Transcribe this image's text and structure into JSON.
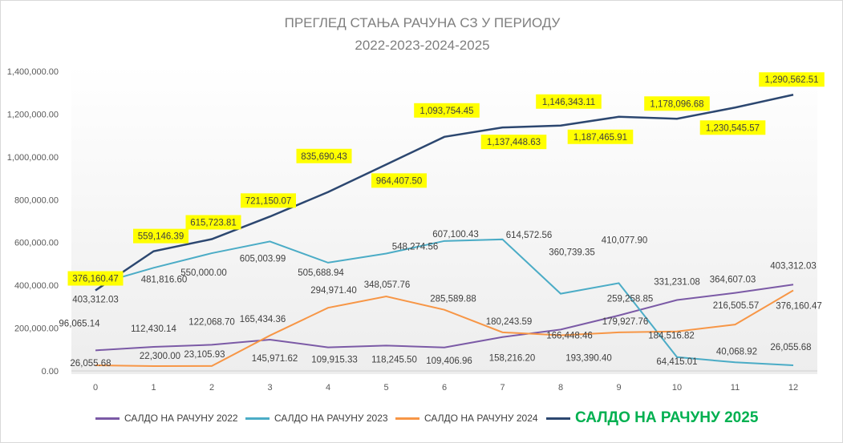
{
  "chart_data": {
    "type": "line",
    "title": [
      "ПРЕГЛЕД СТАЊА РАЧУНА СЗ У ПЕРИОДУ",
      "2022-2023-2024-2025"
    ],
    "x": [
      0,
      1,
      2,
      3,
      4,
      5,
      6,
      7,
      8,
      9,
      10,
      11,
      12
    ],
    "ylim": [
      0,
      1400000
    ],
    "yticks": [
      "0.00",
      "200,000.00",
      "400,000.00",
      "600,000.00",
      "800,000.00",
      "1,000,000.00",
      "1,200,000.00",
      "1,400,000.00"
    ],
    "grid": false,
    "legend_position": "bottom",
    "series": [
      {
        "name": "САЛДО НА РАЧУНУ 2022",
        "color": "#7b5aa6",
        "values": [
          96065.14,
          112430.14,
          122068.7,
          145971.62,
          109915.33,
          118245.5,
          109406.96,
          158216.2,
          193390.4,
          259258.85,
          331231.08,
          364607.03,
          403312.03
        ],
        "labels": [
          "96,065.14",
          "112,430.14",
          "122,068.70",
          "145,971.62",
          "109,915.33",
          "118,245.50",
          "109,406.96",
          "158,216.20",
          "193,390.40",
          "259,258.85",
          "331,231.08",
          "364,607.03",
          "403,312.03"
        ]
      },
      {
        "name": "САЛДО НА РАЧУНУ 2023",
        "color": "#4bacc6",
        "values": [
          403312.03,
          481816.6,
          550000.0,
          605003.99,
          505688.94,
          548274.56,
          607100.43,
          614572.56,
          360739.35,
          410077.9,
          64415.01,
          40068.92,
          26055.68
        ],
        "labels": [
          "403,312.03",
          "481,816.60",
          "550,000.00",
          "605,003.99",
          "505,688.94",
          "548,274.56",
          "607,100.43",
          "614,572.56",
          "360,739.35",
          "410,077.90",
          "64,415.01",
          "40,068.92",
          "26,055.68"
        ]
      },
      {
        "name": "САЛДО НА РАЧУНУ 2024",
        "color": "#f79646",
        "values": [
          26055.68,
          22300.0,
          23105.93,
          165434.36,
          294971.4,
          348057.76,
          285589.88,
          180243.59,
          166448.46,
          179927.76,
          184516.82,
          216505.57,
          376160.47
        ],
        "labels": [
          "26,055.68",
          "22,300.00",
          "23,105.93",
          "165,434.36",
          "294,971.40",
          "348,057.76",
          "285,589.88",
          "180,243.59",
          "166,448.46",
          "179,927.76",
          "184,516.82",
          "216,505.57",
          "376,160.47"
        ]
      },
      {
        "name": "САЛДО НА РАЧУНУ 2025",
        "color": "#2c4770",
        "label_highlight": "#ffff00",
        "values": [
          376160.47,
          559146.39,
          615723.81,
          721150.07,
          835690.43,
          964407.5,
          1093754.45,
          1137448.63,
          1146343.11,
          1187465.91,
          1178096.68,
          1230545.57,
          1290562.51
        ],
        "labels": [
          "376,160.47",
          "559,146.39",
          "615,723.81",
          "721,150.07",
          "835,690.43",
          "964,407.50",
          "1,093,754.45",
          "1,137,448.63",
          "1,146,343.11",
          "1,187,465.91",
          "1,178,096.68",
          "1,230,545.57",
          "1,290,562.51"
        ]
      }
    ]
  }
}
